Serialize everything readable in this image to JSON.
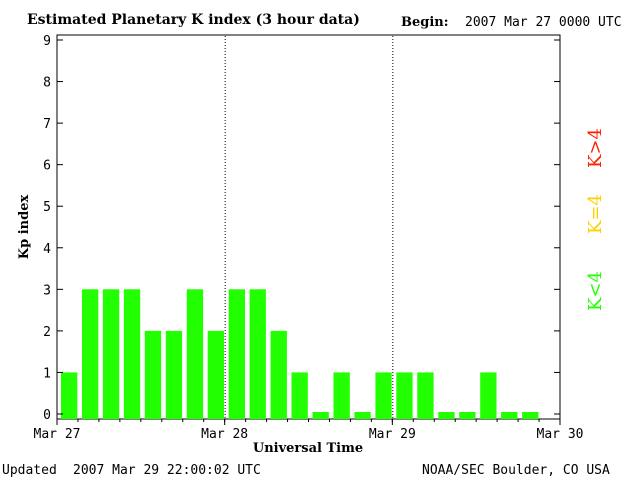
{
  "header": {
    "title": "Estimated Planetary K index (3 hour data)",
    "begin_label": "Begin:",
    "begin_value": "2007 Mar 27 0000 UTC"
  },
  "footer": {
    "updated_label": "Updated",
    "updated_value": "2007 Mar 29 22:00:02 UTC",
    "source": "NOAA/SEC Boulder, CO USA"
  },
  "legend": [
    {
      "label": "K>4",
      "color": "#ff2000"
    },
    {
      "label": "K=4",
      "color": "#ffd000"
    },
    {
      "label": "K<4",
      "color": "#22ff00"
    }
  ],
  "chart_data": {
    "type": "bar",
    "title": "Estimated Planetary K index (3 hour data)",
    "xlabel": "Universal Time",
    "ylabel": "Kp index",
    "ylim": [
      0,
      9
    ],
    "yticks": [
      "0",
      "1",
      "2",
      "3",
      "4",
      "5",
      "6",
      "7",
      "8",
      "9"
    ],
    "x_ticks": [
      "Mar 27",
      "Mar 28",
      "Mar 29",
      "Mar 30"
    ],
    "day_separators": [
      "Mar 28",
      "Mar 29"
    ],
    "bar_color": "#22ff00",
    "series": [
      {
        "values": [
          1,
          3,
          3,
          3,
          2,
          2,
          3,
          2,
          3,
          3,
          2,
          1,
          0,
          1,
          0,
          1,
          1,
          1,
          0,
          0,
          1,
          0,
          0
        ]
      }
    ]
  }
}
